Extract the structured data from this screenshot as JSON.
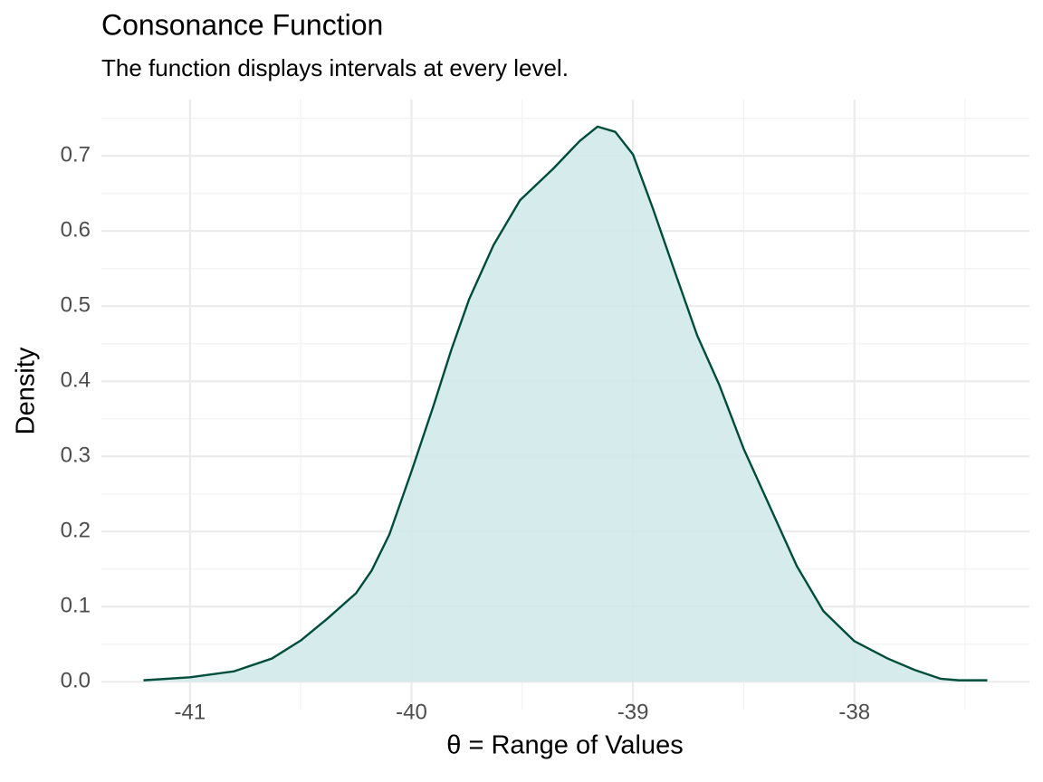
{
  "chart_data": {
    "type": "density",
    "title": "Consonance Function",
    "subtitle": "The function displays intervals at every level.",
    "x_label": "θ =  Range of Values",
    "y_label": "Density",
    "x": [
      -41.21,
      -41.0,
      -40.8,
      -40.63,
      -40.5,
      -40.38,
      -40.25,
      -40.18,
      -40.1,
      -40.0,
      -39.9,
      -39.82,
      -39.74,
      -39.63,
      -39.51,
      -39.36,
      -39.24,
      -39.16,
      -39.08,
      -39.0,
      -38.91,
      -38.81,
      -38.71,
      -38.61,
      -38.5,
      -38.38,
      -38.26,
      -38.14,
      -38.0,
      -37.85,
      -37.73,
      -37.61,
      -37.53,
      -37.4
    ],
    "values": [
      0.002,
      0.006,
      0.014,
      0.031,
      0.055,
      0.084,
      0.118,
      0.148,
      0.196,
      0.28,
      0.368,
      0.442,
      0.509,
      0.581,
      0.641,
      0.683,
      0.72,
      0.739,
      0.732,
      0.702,
      0.63,
      0.545,
      0.461,
      0.395,
      0.31,
      0.232,
      0.154,
      0.094,
      0.054,
      0.031,
      0.016,
      0.004,
      0.002,
      0.002
    ],
    "color": "#004d3b",
    "fill": "#d2eaea",
    "xlim": [
      -41.4,
      -37.21
    ],
    "ylim": [
      -0.037,
      0.775
    ],
    "xticks": [
      -41,
      -40,
      -39,
      -38
    ],
    "yticks": [
      {
        "value": 0,
        "label": "0.0"
      },
      0.1,
      0.2,
      0.3,
      0.4,
      0.5,
      0.6,
      0.7
    ],
    "minor_xticks": [
      -40.5,
      -39.5,
      -38.5,
      -37.5
    ],
    "minor_yticks": [
      0.05,
      0.15,
      0.25,
      0.35,
      0.45,
      0.55,
      0.65,
      0.75
    ],
    "grid": true
  }
}
